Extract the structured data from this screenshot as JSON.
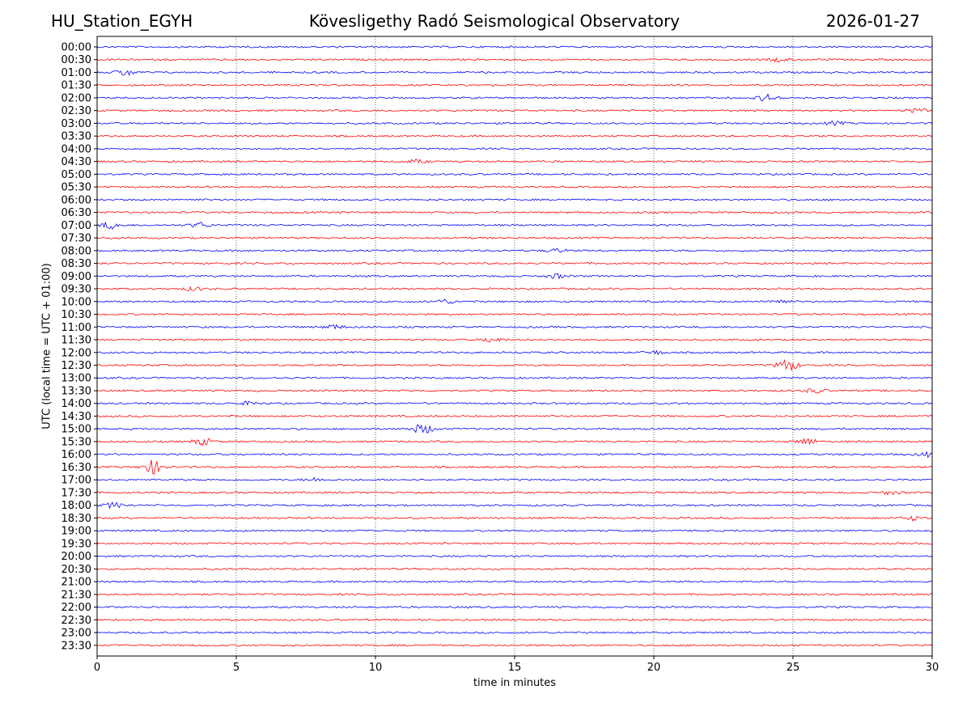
{
  "header": {
    "station": "HU_Station_EGYH",
    "observatory": "Kövesligethy Radó Seismological Observatory",
    "date": "2026-01-27"
  },
  "chart_data": {
    "type": "line",
    "title": "Kövesligethy Radó Seismological Observatory",
    "xlabel": "time in minutes",
    "ylabel": "UTC (local time = UTC + 01:00)",
    "xlim": [
      0,
      30
    ],
    "xticks": [
      0,
      5,
      10,
      15,
      20,
      25,
      30
    ],
    "grid": "vertical dotted at x ticks",
    "row_labels": [
      "00:00",
      "00:30",
      "01:00",
      "01:30",
      "02:00",
      "02:30",
      "03:00",
      "03:30",
      "04:00",
      "04:30",
      "05:00",
      "05:30",
      "06:00",
      "06:30",
      "07:00",
      "07:30",
      "08:00",
      "08:30",
      "09:00",
      "09:30",
      "10:00",
      "10:30",
      "11:00",
      "11:30",
      "12:00",
      "12:30",
      "13:00",
      "13:30",
      "14:00",
      "14:30",
      "15:00",
      "15:30",
      "16:00",
      "16:30",
      "17:00",
      "17:30",
      "18:00",
      "18:30",
      "19:00",
      "19:30",
      "20:00",
      "20:30",
      "21:00",
      "21:30",
      "22:00",
      "22:30",
      "23:00",
      "23:30"
    ],
    "colors": [
      "#0000ff",
      "#ff0000"
    ],
    "events": [
      {
        "row": 1,
        "t": 24.5,
        "amp": 2
      },
      {
        "row": 2,
        "t": 1.0,
        "amp": 4
      },
      {
        "row": 4,
        "t": 24.1,
        "amp": 4
      },
      {
        "row": 5,
        "t": 29.5,
        "amp": 2.5
      },
      {
        "row": 6,
        "t": 26.5,
        "amp": 2
      },
      {
        "row": 9,
        "t": 11.5,
        "amp": 2
      },
      {
        "row": 14,
        "t": 0.5,
        "amp": 4
      },
      {
        "row": 14,
        "t": 3.7,
        "amp": 3
      },
      {
        "row": 16,
        "t": 16.5,
        "amp": 2
      },
      {
        "row": 18,
        "t": 16.5,
        "amp": 2.5
      },
      {
        "row": 19,
        "t": 3.5,
        "amp": 2
      },
      {
        "row": 20,
        "t": 12.5,
        "amp": 2.5
      },
      {
        "row": 20,
        "t": 24.5,
        "amp": 2.5
      },
      {
        "row": 22,
        "t": 8.5,
        "amp": 2.5
      },
      {
        "row": 23,
        "t": 14.2,
        "amp": 3
      },
      {
        "row": 24,
        "t": 20.0,
        "amp": 2
      },
      {
        "row": 25,
        "t": 24.8,
        "amp": 7
      },
      {
        "row": 27,
        "t": 25.8,
        "amp": 2.5
      },
      {
        "row": 28,
        "t": 5.5,
        "amp": 2
      },
      {
        "row": 30,
        "t": 11.7,
        "amp": 6
      },
      {
        "row": 31,
        "t": 3.8,
        "amp": 4
      },
      {
        "row": 31,
        "t": 25.5,
        "amp": 4
      },
      {
        "row": 32,
        "t": 29.8,
        "amp": 2.5
      },
      {
        "row": 33,
        "t": 2.0,
        "amp": 8
      },
      {
        "row": 34,
        "t": 7.8,
        "amp": 2
      },
      {
        "row": 35,
        "t": 28.5,
        "amp": 2
      },
      {
        "row": 36,
        "t": 0.6,
        "amp": 3
      },
      {
        "row": 37,
        "t": 29.3,
        "amp": 2.5
      }
    ]
  }
}
